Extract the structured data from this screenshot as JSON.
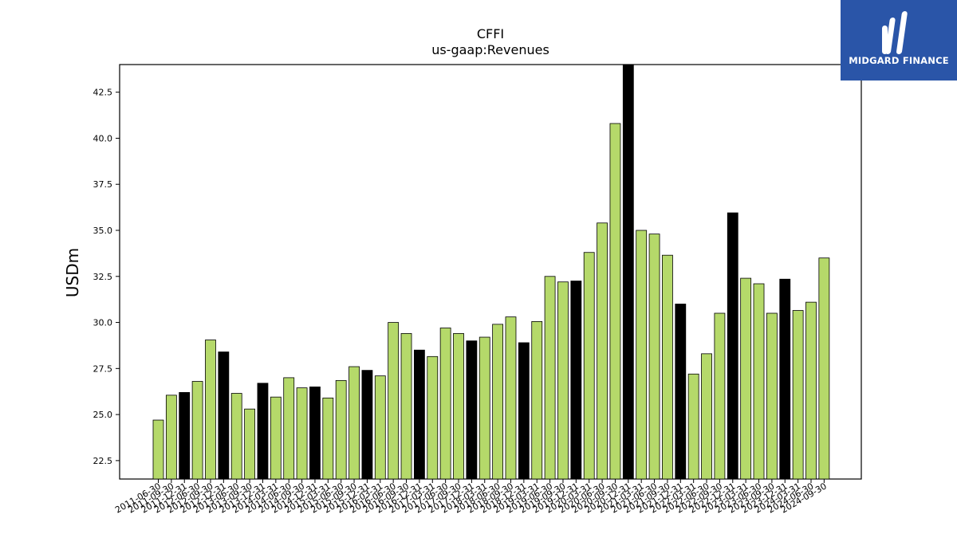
{
  "brand": {
    "name": "MIDGARD FINANCE",
    "bg_color": "#2a55a8",
    "logo_icon": "midgard-logo-icon"
  },
  "chart_data": {
    "type": "bar",
    "title": "CFFI",
    "subtitle": "us-gaap:Revenues",
    "xlabel": "",
    "ylabel": "USDm",
    "ylim": [
      21.5,
      44.0
    ],
    "yticks": [
      "22.5",
      "25.0",
      "27.5",
      "30.0",
      "32.5",
      "35.0",
      "37.5",
      "40.0",
      "42.5"
    ],
    "grid": false,
    "colors": {
      "regular": "#b5d96a",
      "highlight": "#000000",
      "edge": "#000000"
    },
    "categories": [
      "2011-06-30",
      "2011-09-30",
      "2011-12-31",
      "2012-06-30",
      "2012-09-30",
      "2012-12-31",
      "2013-06-30",
      "2013-09-30",
      "2013-12-31",
      "2014-03-31",
      "2014-06-30",
      "2014-09-30",
      "2014-12-31",
      "2015-03-31",
      "2015-06-30",
      "2015-09-30",
      "2015-12-31",
      "2016-03-31",
      "2016-06-30",
      "2016-09-30",
      "2016-12-31",
      "2017-03-31",
      "2017-06-30",
      "2017-09-30",
      "2017-12-31",
      "2018-03-31",
      "2018-06-30",
      "2018-09-30",
      "2018-12-31",
      "2019-03-31",
      "2019-06-30",
      "2019-09-30",
      "2019-12-31",
      "2020-03-31",
      "2020-06-30",
      "2020-09-30",
      "2020-12-31",
      "2021-03-31",
      "2021-06-30",
      "2021-09-30",
      "2021-12-31",
      "2022-03-31",
      "2022-06-30",
      "2022-09-30",
      "2022-12-31",
      "2023-03-31",
      "2023-06-30",
      "2023-09-30",
      "2023-12-31",
      "2024-03-31",
      "2024-06-30",
      "2024-09-30"
    ],
    "values": [
      24.7,
      26.05,
      26.2,
      26.8,
      29.05,
      28.4,
      26.15,
      25.3,
      26.7,
      25.95,
      27.0,
      26.45,
      26.5,
      25.9,
      26.85,
      27.6,
      27.4,
      27.1,
      30.0,
      29.4,
      28.5,
      28.15,
      29.7,
      29.4,
      29.0,
      29.2,
      29.9,
      30.3,
      28.9,
      30.05,
      32.5,
      32.2,
      32.25,
      33.8,
      35.4,
      40.8,
      44.0,
      35.0,
      34.8,
      33.65,
      31.0,
      27.2,
      28.3,
      30.5,
      35.95,
      32.4,
      32.1,
      30.5,
      32.35,
      30.65,
      31.1,
      33.5
    ],
    "highlight": [
      false,
      false,
      true,
      false,
      false,
      true,
      false,
      false,
      true,
      false,
      false,
      false,
      true,
      false,
      false,
      false,
      true,
      false,
      false,
      false,
      true,
      false,
      false,
      false,
      true,
      false,
      false,
      false,
      true,
      false,
      false,
      false,
      true,
      false,
      false,
      false,
      true,
      false,
      false,
      false,
      true,
      false,
      false,
      false,
      true,
      false,
      false,
      false,
      true,
      false,
      false,
      false
    ]
  }
}
